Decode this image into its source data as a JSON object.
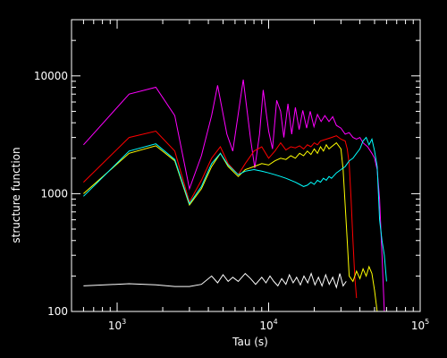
{
  "chart_data": {
    "type": "line",
    "title": "",
    "xlabel": "Tau (s)",
    "ylabel": "structure function",
    "xscale": "log",
    "yscale": "log",
    "xlim": [
      500,
      100000
    ],
    "ylim": [
      100,
      30000
    ],
    "x_ticks": [
      {
        "base": "10",
        "exp": "3",
        "value": 1000
      },
      {
        "base": "10",
        "exp": "4",
        "value": 10000
      },
      {
        "base": "10",
        "exp": "5",
        "value": 100000
      }
    ],
    "y_ticks": [
      {
        "label": "100",
        "value": 100
      },
      {
        "label": "1000",
        "value": 1000
      },
      {
        "label": "10000",
        "value": 10000
      }
    ],
    "grid": false,
    "legend": "none",
    "series": [
      {
        "color": "#ff00ff",
        "points": [
          [
            600,
            2600
          ],
          [
            1200,
            7000
          ],
          [
            1800,
            8000
          ],
          [
            2400,
            4600
          ],
          [
            3000,
            1100
          ],
          [
            3600,
            2100
          ],
          [
            4200,
            4600
          ],
          [
            4600,
            8300
          ],
          [
            5300,
            3200
          ],
          [
            5800,
            2300
          ],
          [
            6800,
            9300
          ],
          [
            7600,
            2900
          ],
          [
            8100,
            1650
          ],
          [
            8700,
            3200
          ],
          [
            9200,
            7600
          ],
          [
            10000,
            3400
          ],
          [
            10600,
            2400
          ],
          [
            11300,
            6200
          ],
          [
            12000,
            5000
          ],
          [
            12600,
            3000
          ],
          [
            13400,
            5800
          ],
          [
            14200,
            3200
          ],
          [
            15000,
            5400
          ],
          [
            15900,
            3500
          ],
          [
            16800,
            5100
          ],
          [
            17800,
            3600
          ],
          [
            18800,
            5000
          ],
          [
            19900,
            3700
          ],
          [
            21000,
            4700
          ],
          [
            22200,
            4100
          ],
          [
            23500,
            4600
          ],
          [
            25000,
            4100
          ],
          [
            26500,
            4500
          ],
          [
            28000,
            3800
          ],
          [
            30000,
            3600
          ],
          [
            32000,
            3200
          ],
          [
            34000,
            3300
          ],
          [
            36000,
            3000
          ],
          [
            38000,
            2900
          ],
          [
            40000,
            3000
          ],
          [
            42000,
            2700
          ],
          [
            45000,
            2500
          ],
          [
            48000,
            2200
          ],
          [
            50000,
            2000
          ],
          [
            52000,
            1600
          ],
          [
            54000,
            900
          ],
          [
            56000,
            300
          ],
          [
            58000,
            100
          ]
        ]
      },
      {
        "color": "#ff0000",
        "points": [
          [
            600,
            1250
          ],
          [
            1200,
            3000
          ],
          [
            1800,
            3400
          ],
          [
            2400,
            2300
          ],
          [
            3000,
            850
          ],
          [
            3600,
            1300
          ],
          [
            4200,
            2000
          ],
          [
            4800,
            2500
          ],
          [
            5400,
            1800
          ],
          [
            6300,
            1450
          ],
          [
            7000,
            1800
          ],
          [
            8000,
            2300
          ],
          [
            9000,
            2500
          ],
          [
            10000,
            2000
          ],
          [
            11000,
            2300
          ],
          [
            12000,
            2700
          ],
          [
            13000,
            2350
          ],
          [
            14000,
            2500
          ],
          [
            15000,
            2450
          ],
          [
            16000,
            2550
          ],
          [
            17000,
            2400
          ],
          [
            18000,
            2600
          ],
          [
            19000,
            2500
          ],
          [
            20000,
            2700
          ],
          [
            21000,
            2600
          ],
          [
            22000,
            2800
          ],
          [
            24000,
            2900
          ],
          [
            26000,
            3000
          ],
          [
            28000,
            3100
          ],
          [
            30000,
            2900
          ],
          [
            32000,
            2800
          ],
          [
            33000,
            2400
          ],
          [
            34000,
            1800
          ],
          [
            35000,
            900
          ],
          [
            36000,
            400
          ],
          [
            37000,
            200
          ],
          [
            38000,
            130
          ]
        ]
      },
      {
        "color": "#ffff00",
        "points": [
          [
            600,
            1000
          ],
          [
            1200,
            2200
          ],
          [
            1800,
            2550
          ],
          [
            2400,
            1900
          ],
          [
            3000,
            800
          ],
          [
            3600,
            1100
          ],
          [
            4200,
            1700
          ],
          [
            4800,
            2200
          ],
          [
            5400,
            1700
          ],
          [
            6300,
            1400
          ],
          [
            7000,
            1600
          ],
          [
            8000,
            1700
          ],
          [
            9000,
            1800
          ],
          [
            10000,
            1750
          ],
          [
            11000,
            1900
          ],
          [
            12000,
            2000
          ],
          [
            13000,
            1950
          ],
          [
            14000,
            2100
          ],
          [
            15000,
            2000
          ],
          [
            16000,
            2200
          ],
          [
            17000,
            2100
          ],
          [
            18000,
            2300
          ],
          [
            19000,
            2150
          ],
          [
            20000,
            2400
          ],
          [
            21000,
            2200
          ],
          [
            22000,
            2500
          ],
          [
            23000,
            2300
          ],
          [
            24000,
            2600
          ],
          [
            25000,
            2400
          ],
          [
            26000,
            2500
          ],
          [
            28000,
            2700
          ],
          [
            30000,
            2400
          ],
          [
            31000,
            1600
          ],
          [
            32000,
            800
          ],
          [
            33000,
            400
          ],
          [
            34000,
            200
          ],
          [
            36000,
            180
          ],
          [
            38000,
            220
          ],
          [
            40000,
            190
          ],
          [
            42000,
            230
          ],
          [
            44000,
            200
          ],
          [
            46000,
            240
          ],
          [
            48000,
            210
          ],
          [
            50000,
            150
          ],
          [
            52000,
            100
          ]
        ]
      },
      {
        "color": "#00ffff",
        "points": [
          [
            600,
            950
          ],
          [
            1200,
            2300
          ],
          [
            1800,
            2650
          ],
          [
            2400,
            1950
          ],
          [
            3000,
            820
          ],
          [
            3600,
            1150
          ],
          [
            4200,
            1800
          ],
          [
            4800,
            2200
          ],
          [
            5400,
            1750
          ],
          [
            6300,
            1450
          ],
          [
            7000,
            1550
          ],
          [
            8000,
            1600
          ],
          [
            9000,
            1550
          ],
          [
            10000,
            1500
          ],
          [
            11000,
            1450
          ],
          [
            12000,
            1400
          ],
          [
            13000,
            1350
          ],
          [
            14000,
            1300
          ],
          [
            15000,
            1250
          ],
          [
            16000,
            1200
          ],
          [
            17000,
            1150
          ],
          [
            18000,
            1180
          ],
          [
            19000,
            1250
          ],
          [
            20000,
            1200
          ],
          [
            21000,
            1300
          ],
          [
            22000,
            1250
          ],
          [
            23000,
            1350
          ],
          [
            24000,
            1300
          ],
          [
            25000,
            1400
          ],
          [
            26000,
            1350
          ],
          [
            28000,
            1500
          ],
          [
            30000,
            1600
          ],
          [
            32000,
            1700
          ],
          [
            34000,
            1900
          ],
          [
            36000,
            2000
          ],
          [
            38000,
            2200
          ],
          [
            40000,
            2400
          ],
          [
            42000,
            2800
          ],
          [
            44000,
            3000
          ],
          [
            46000,
            2600
          ],
          [
            48000,
            2900
          ],
          [
            50000,
            2300
          ],
          [
            52000,
            1700
          ],
          [
            53000,
            1000
          ],
          [
            54000,
            600
          ],
          [
            56000,
            400
          ],
          [
            58000,
            300
          ],
          [
            60000,
            180
          ]
        ]
      },
      {
        "color": "#ffffff",
        "points": [
          [
            600,
            165
          ],
          [
            1200,
            172
          ],
          [
            1800,
            168
          ],
          [
            2400,
            163
          ],
          [
            3000,
            163
          ],
          [
            3600,
            170
          ],
          [
            4200,
            200
          ],
          [
            4600,
            175
          ],
          [
            5000,
            205
          ],
          [
            5400,
            180
          ],
          [
            5800,
            195
          ],
          [
            6300,
            180
          ],
          [
            7000,
            210
          ],
          [
            7600,
            190
          ],
          [
            8200,
            170
          ],
          [
            9000,
            195
          ],
          [
            9600,
            175
          ],
          [
            10200,
            200
          ],
          [
            10800,
            180
          ],
          [
            11500,
            165
          ],
          [
            12200,
            190
          ],
          [
            13000,
            170
          ],
          [
            13700,
            205
          ],
          [
            14500,
            175
          ],
          [
            15300,
            195
          ],
          [
            16200,
            168
          ],
          [
            17100,
            200
          ],
          [
            18100,
            175
          ],
          [
            19100,
            210
          ],
          [
            20200,
            168
          ],
          [
            21300,
            195
          ],
          [
            22500,
            165
          ],
          [
            23800,
            205
          ],
          [
            25100,
            170
          ],
          [
            26500,
            195
          ],
          [
            28000,
            160
          ],
          [
            29500,
            210
          ],
          [
            31000,
            165
          ],
          [
            32500,
            180
          ]
        ]
      }
    ]
  }
}
